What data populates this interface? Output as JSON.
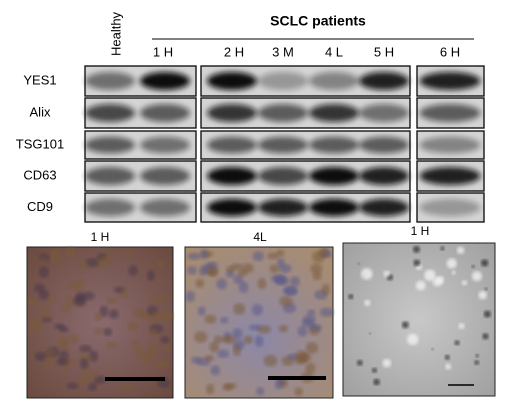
{
  "header": {
    "control_label": "Healthy",
    "title": "SCLC patients"
  },
  "lanes": [
    "1 H",
    "2 H",
    "3 M",
    "4 L",
    "5 H",
    "6 H"
  ],
  "rows": [
    "YES1",
    "Alix",
    "TSG101",
    "CD63",
    "CD9"
  ],
  "images": [
    {
      "label": "1 H"
    },
    {
      "label": "4L"
    },
    {
      "label": "1 H"
    }
  ]
}
